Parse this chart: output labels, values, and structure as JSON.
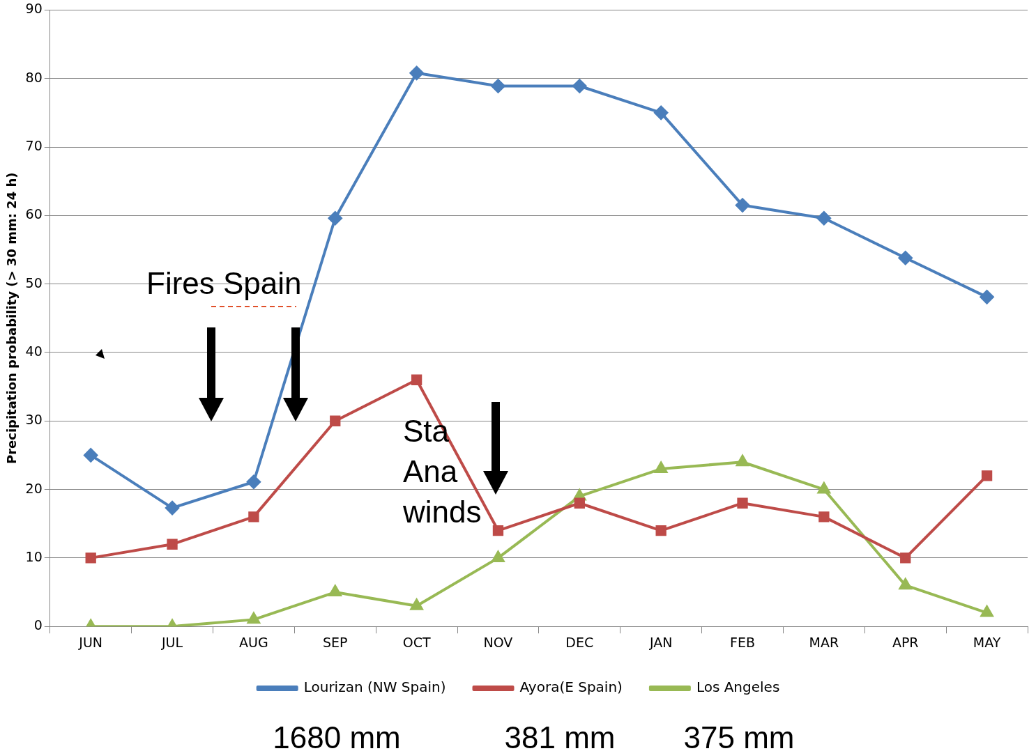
{
  "chart_data": {
    "type": "line",
    "ylabel": "Precipitation probability (> 30 mm: 24 h)",
    "categories": [
      "JUN",
      "JUL",
      "AUG",
      "SEP",
      "OCT",
      "NOV",
      "DEC",
      "JAN",
      "FEB",
      "MAR",
      "APR",
      "MAY"
    ],
    "series": [
      {
        "name": "Lourizan (NW Spain)",
        "color": "#4a7ebb",
        "marker": "diamond",
        "values": [
          25,
          17.3,
          21.1,
          59.6,
          80.8,
          78.9,
          78.9,
          75,
          61.5,
          59.6,
          53.8,
          48.1
        ]
      },
      {
        "name": "Ayora(E Spain)",
        "color": "#be4b48",
        "marker": "square",
        "values": [
          10,
          12,
          16,
          30,
          36,
          14,
          18,
          14,
          18,
          16,
          10,
          22
        ]
      },
      {
        "name": "Los Angeles",
        "color": "#98b954",
        "marker": "triangle",
        "values": [
          0,
          0,
          1,
          5,
          3,
          10,
          19,
          23,
          24,
          20,
          6,
          2
        ]
      }
    ],
    "ylim": [
      0,
      90
    ],
    "yticks": [
      0,
      10,
      20,
      30,
      40,
      50,
      60,
      70,
      80,
      90
    ],
    "grid": "y",
    "legend": "bottom",
    "annotations": [
      "Fires Spain",
      "Sta Ana winds",
      "1680 mm",
      "381 mm",
      "375 mm"
    ]
  }
}
